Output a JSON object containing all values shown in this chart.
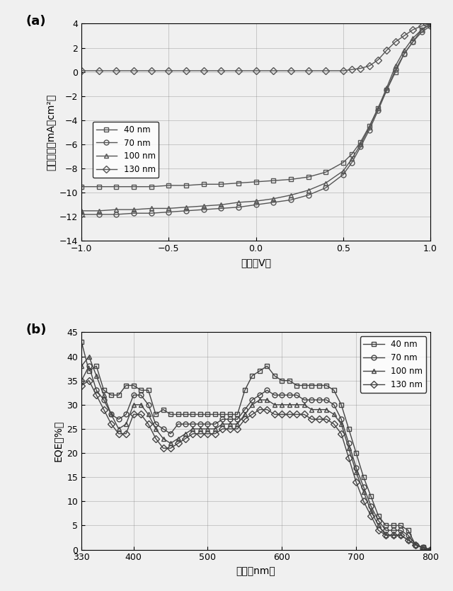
{
  "panel_a": {
    "title": "(a)",
    "xlabel": "電圧（V）",
    "ylabel": "電流密度（mA／cm²）",
    "xlim": [
      -1.0,
      1.0
    ],
    "ylim": [
      -14,
      4
    ],
    "xticks": [
      -1.0,
      -0.5,
      0.0,
      0.5,
      1.0
    ],
    "yticks": [
      -14,
      -12,
      -10,
      -8,
      -6,
      -4,
      -2,
      0,
      2,
      4
    ],
    "series": {
      "40nm": {
        "marker": "s",
        "color": "#555555",
        "x": [
          -1.0,
          -0.9,
          -0.8,
          -0.7,
          -0.6,
          -0.5,
          -0.4,
          -0.3,
          -0.2,
          -0.1,
          0.0,
          0.1,
          0.2,
          0.3,
          0.4,
          0.5,
          0.55,
          0.6,
          0.65,
          0.7,
          0.75,
          0.8,
          0.85,
          0.9,
          0.95,
          1.0
        ],
        "y": [
          -9.5,
          -9.5,
          -9.5,
          -9.5,
          -9.5,
          -9.4,
          -9.4,
          -9.3,
          -9.3,
          -9.2,
          -9.1,
          -9.0,
          -8.9,
          -8.7,
          -8.3,
          -7.5,
          -6.8,
          -5.8,
          -4.5,
          -3.0,
          -1.5,
          0.0,
          1.5,
          2.5,
          3.5,
          4.0
        ]
      },
      "70nm": {
        "marker": "o",
        "color": "#555555",
        "x": [
          -1.0,
          -0.9,
          -0.8,
          -0.7,
          -0.6,
          -0.5,
          -0.4,
          -0.3,
          -0.2,
          -0.1,
          0.0,
          0.1,
          0.2,
          0.3,
          0.4,
          0.5,
          0.55,
          0.6,
          0.65,
          0.7,
          0.75,
          0.8,
          0.85,
          0.9,
          0.95,
          1.0
        ],
        "y": [
          -11.8,
          -11.8,
          -11.8,
          -11.7,
          -11.7,
          -11.6,
          -11.5,
          -11.4,
          -11.3,
          -11.2,
          -11.0,
          -10.8,
          -10.6,
          -10.2,
          -9.6,
          -8.5,
          -7.5,
          -6.2,
          -4.8,
          -3.2,
          -1.5,
          0.2,
          1.5,
          2.5,
          3.3,
          3.8
        ]
      },
      "100nm": {
        "marker": "^",
        "color": "#555555",
        "x": [
          -1.0,
          -0.9,
          -0.8,
          -0.7,
          -0.6,
          -0.5,
          -0.4,
          -0.3,
          -0.2,
          -0.1,
          0.0,
          0.1,
          0.2,
          0.3,
          0.4,
          0.5,
          0.55,
          0.6,
          0.65,
          0.7,
          0.75,
          0.8,
          0.85,
          0.9,
          0.95,
          1.0
        ],
        "y": [
          -11.5,
          -11.5,
          -11.4,
          -11.4,
          -11.3,
          -11.3,
          -11.2,
          -11.1,
          -11.0,
          -10.8,
          -10.7,
          -10.5,
          -10.2,
          -9.8,
          -9.2,
          -8.2,
          -7.2,
          -6.0,
          -4.6,
          -3.0,
          -1.3,
          0.5,
          1.8,
          2.8,
          3.5,
          3.9
        ]
      },
      "130nm": {
        "marker": "D",
        "color": "#555555",
        "x": [
          -1.0,
          -0.9,
          -0.8,
          -0.7,
          -0.6,
          -0.5,
          -0.4,
          -0.3,
          -0.2,
          -0.1,
          0.0,
          0.1,
          0.2,
          0.3,
          0.4,
          0.5,
          0.55,
          0.6,
          0.65,
          0.7,
          0.75,
          0.8,
          0.85,
          0.9,
          0.95,
          1.0
        ],
        "y": [
          0.1,
          0.1,
          0.1,
          0.1,
          0.1,
          0.1,
          0.1,
          0.1,
          0.1,
          0.1,
          0.1,
          0.1,
          0.1,
          0.1,
          0.1,
          0.1,
          0.2,
          0.3,
          0.5,
          1.0,
          1.8,
          2.5,
          3.0,
          3.5,
          3.8,
          4.0
        ]
      }
    },
    "legend_labels": [
      "40 nm",
      "70 nm",
      "100 nm",
      "130 nm"
    ]
  },
  "panel_b": {
    "title": "(b)",
    "xlabel": "波長（nm）",
    "ylabel": "EQE（%）",
    "xlim": [
      330,
      800
    ],
    "ylim": [
      0,
      45
    ],
    "xticks": [
      330,
      400,
      500,
      600,
      700,
      800
    ],
    "yticks": [
      0,
      5,
      10,
      15,
      20,
      25,
      30,
      35,
      40,
      45
    ],
    "series": {
      "40nm": {
        "marker": "s",
        "color": "#444444",
        "x": [
          330,
          340,
          350,
          360,
          370,
          380,
          390,
          400,
          410,
          420,
          430,
          440,
          450,
          460,
          470,
          480,
          490,
          500,
          510,
          520,
          530,
          540,
          550,
          560,
          570,
          580,
          590,
          600,
          610,
          620,
          630,
          640,
          650,
          660,
          670,
          680,
          690,
          700,
          710,
          720,
          730,
          740,
          750,
          760,
          770,
          780,
          790,
          800
        ],
        "y": [
          43,
          37,
          38,
          33,
          32,
          32,
          34,
          34,
          33,
          33,
          28,
          29,
          28,
          28,
          28,
          28,
          28,
          28,
          28,
          28,
          28,
          28,
          33,
          36,
          37,
          38,
          36,
          35,
          35,
          34,
          34,
          34,
          34,
          34,
          33,
          30,
          25,
          20,
          15,
          11,
          7,
          5,
          5,
          5,
          4,
          1,
          0.5,
          0
        ]
      },
      "70nm": {
        "marker": "o",
        "color": "#444444",
        "x": [
          330,
          340,
          350,
          360,
          370,
          380,
          390,
          400,
          410,
          420,
          430,
          440,
          450,
          460,
          470,
          480,
          490,
          500,
          510,
          520,
          530,
          540,
          550,
          560,
          570,
          580,
          590,
          600,
          610,
          620,
          630,
          640,
          650,
          660,
          670,
          680,
          690,
          700,
          710,
          720,
          730,
          740,
          750,
          760,
          770,
          780,
          790,
          800
        ],
        "y": [
          35,
          38,
          33,
          31,
          28,
          27,
          28,
          32,
          32,
          30,
          26,
          25,
          24,
          26,
          26,
          26,
          26,
          26,
          26,
          27,
          27,
          27,
          29,
          31,
          32,
          33,
          32,
          32,
          32,
          32,
          31,
          31,
          31,
          31,
          30,
          27,
          22,
          17,
          13,
          9,
          6,
          4,
          4,
          4,
          3,
          1,
          0.5,
          0
        ]
      },
      "100nm": {
        "marker": "^",
        "color": "#444444",
        "x": [
          330,
          340,
          350,
          360,
          370,
          380,
          390,
          400,
          410,
          420,
          430,
          440,
          450,
          460,
          470,
          480,
          490,
          500,
          510,
          520,
          530,
          540,
          550,
          560,
          570,
          580,
          590,
          600,
          610,
          620,
          630,
          640,
          650,
          660,
          670,
          680,
          690,
          700,
          710,
          720,
          730,
          740,
          750,
          760,
          770,
          780,
          790,
          800
        ],
        "y": [
          38,
          40,
          36,
          32,
          28,
          25,
          26,
          30,
          30,
          28,
          25,
          23,
          22,
          23,
          24,
          25,
          25,
          25,
          25,
          26,
          26,
          26,
          28,
          30,
          31,
          31,
          30,
          30,
          30,
          30,
          30,
          29,
          29,
          29,
          28,
          26,
          21,
          16,
          12,
          8,
          5,
          3,
          3,
          3,
          2,
          1,
          0.3,
          0
        ]
      },
      "130nm": {
        "marker": "D",
        "color": "#444444",
        "x": [
          330,
          340,
          350,
          360,
          370,
          380,
          390,
          400,
          410,
          420,
          430,
          440,
          450,
          460,
          470,
          480,
          490,
          500,
          510,
          520,
          530,
          540,
          550,
          560,
          570,
          580,
          590,
          600,
          610,
          620,
          630,
          640,
          650,
          660,
          670,
          680,
          690,
          700,
          710,
          720,
          730,
          740,
          750,
          760,
          770,
          780,
          790,
          800
        ],
        "y": [
          34,
          35,
          32,
          29,
          26,
          24,
          24,
          28,
          28,
          26,
          23,
          21,
          21,
          22,
          23,
          24,
          24,
          24,
          24,
          25,
          25,
          25,
          27,
          28,
          29,
          29,
          28,
          28,
          28,
          28,
          28,
          27,
          27,
          27,
          26,
          24,
          19,
          14,
          10,
          7,
          4,
          3,
          3,
          3,
          2,
          1,
          0.3,
          0
        ]
      }
    },
    "legend_labels": [
      "40 nm",
      "70 nm",
      "100 nm",
      "130 nm"
    ]
  },
  "background_color": "#f0f0f0",
  "figure_bg": "#f0f0f0"
}
